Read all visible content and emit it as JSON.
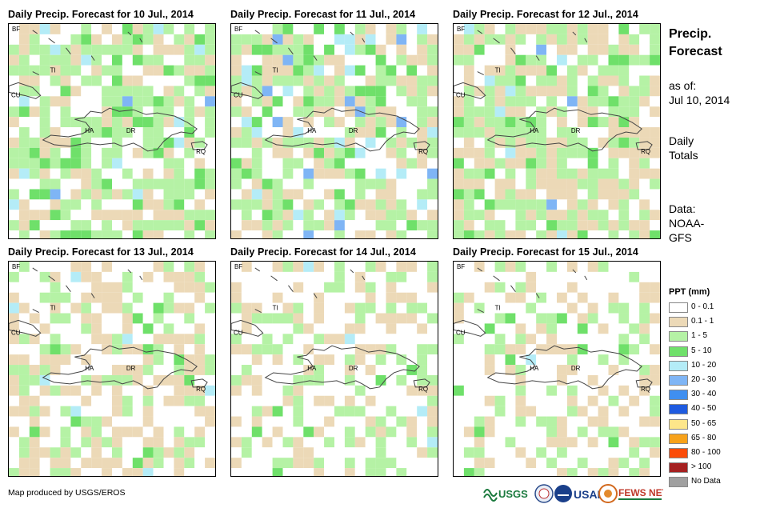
{
  "panels": [
    {
      "title": "Daily Precip. Forecast for 10 Jul., 2014"
    },
    {
      "title": "Daily Precip. Forecast for 11 Jul., 2014"
    },
    {
      "title": "Daily Precip. Forecast for 12 Jul., 2014"
    },
    {
      "title": "Daily Precip. Forecast for 13 Jul., 2014"
    },
    {
      "title": "Daily Precip. Forecast for 14 Jul., 2014"
    },
    {
      "title": "Daily Precip. Forecast for 15 Jul., 2014"
    }
  ],
  "map_labels": {
    "bf": "BF",
    "cu": "CU",
    "ti": "TI",
    "ha": "HA",
    "dr": "DR",
    "rq": "RQ"
  },
  "sidebar": {
    "title_line1": "Precip.",
    "title_line2": "Forecast",
    "asof_label": "as of:",
    "asof_date": "Jul 10, 2014",
    "totals_line1": "Daily",
    "totals_line2": "Totals",
    "data_line1": "Data:",
    "data_line2": "NOAA-",
    "data_line3": "GFS"
  },
  "legend": {
    "title": "PPT (mm)",
    "items": [
      {
        "label": "0 - 0.1",
        "color": "#ffffff"
      },
      {
        "label": "0.1 - 1",
        "color": "#ecd9b7"
      },
      {
        "label": "1 - 5",
        "color": "#b5f2a5"
      },
      {
        "label": "5 - 10",
        "color": "#6fe06a"
      },
      {
        "label": "10 - 20",
        "color": "#b4ecf7"
      },
      {
        "label": "20 - 30",
        "color": "#7fb5f5"
      },
      {
        "label": "30 - 40",
        "color": "#3f8ff0"
      },
      {
        "label": "40 - 50",
        "color": "#1f5be0"
      },
      {
        "label": "50 - 65",
        "color": "#fde68a"
      },
      {
        "label": "65 - 80",
        "color": "#f7a21b"
      },
      {
        "label": "80 - 100",
        "color": "#fb4b08"
      },
      {
        "label": "> 100",
        "color": "#a52020"
      },
      {
        "label": "No Data",
        "color": "#a0a0a0"
      }
    ]
  },
  "credit": "Map produced by USGS/EROS",
  "logos": {
    "usgs": "USGS",
    "usaid": "USAID",
    "fewsnet": "FEWS NET"
  }
}
